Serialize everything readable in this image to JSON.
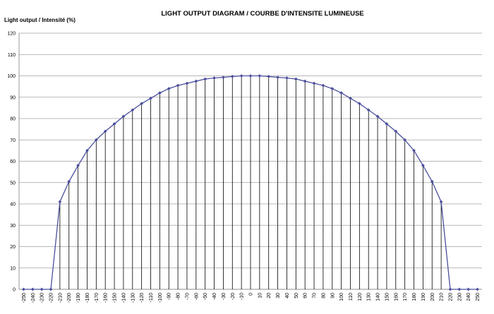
{
  "chart_data": {
    "type": "line",
    "title": "LIGHT OUTPUT DIAGRAM / COURBE D'INTENSITE LUMINEUSE",
    "y_label": "Light output / Intensité (%)",
    "categories": [
      "-250",
      "-240",
      "-230",
      "-220",
      "-210",
      "-200",
      "-190",
      "-180",
      "-170",
      "-160",
      "-150",
      "-140",
      "-130",
      "-120",
      "-110",
      "-100",
      "-90",
      "-80",
      "-70",
      "-60",
      "-50",
      "-40",
      "-30",
      "-20",
      "-10",
      "0",
      "10",
      "20",
      "30",
      "40",
      "50",
      "60",
      "70",
      "80",
      "90",
      "100",
      "110",
      "120",
      "130",
      "140",
      "150",
      "160",
      "170",
      "180",
      "190",
      "200",
      "210",
      "220",
      "230",
      "240",
      "250"
    ],
    "series": [
      {
        "color": "#4a4f9c",
        "values": [
          0,
          0,
          0,
          0,
          41,
          50.5,
          58,
          65,
          70,
          74,
          77.5,
          81,
          84,
          87,
          89.5,
          92,
          94,
          95.5,
          96.5,
          97.5,
          98.5,
          99,
          99.3,
          99.7,
          100,
          100,
          100,
          99.7,
          99.3,
          99,
          98.5,
          97.5,
          96.5,
          95.5,
          94,
          92,
          89.5,
          87,
          84,
          81,
          77.5,
          74,
          70,
          65,
          58,
          50.5,
          41,
          0,
          0,
          0,
          0
        ]
      }
    ],
    "ylim": [
      0,
      120
    ],
    "yticks": [
      0,
      10,
      20,
      30,
      40,
      50,
      60,
      70,
      80,
      90,
      100,
      110,
      120
    ],
    "grid": true,
    "drop_lines": true
  }
}
